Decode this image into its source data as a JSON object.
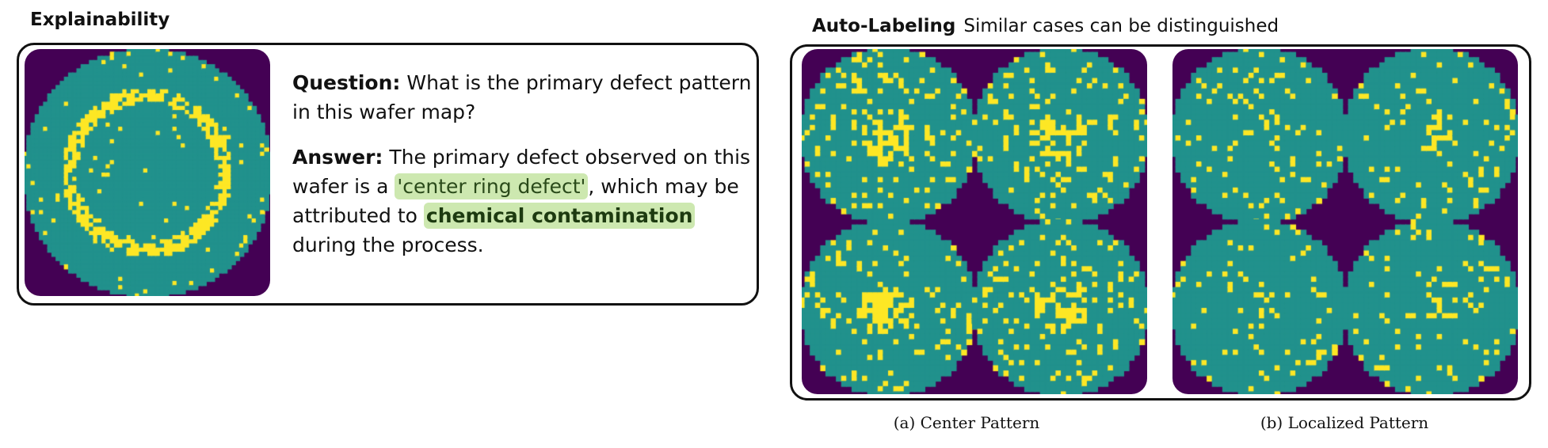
{
  "explainability": {
    "title": "Explainability",
    "question_label": "Question:",
    "question_text": "What is the primary defect pattern in this wafer map?",
    "answer_label": "Answer:",
    "answer_part1": "The primary defect observed on this wafer is a",
    "answer_highlight1": "'center ring defect'",
    "answer_part2": ", which may be attributed to",
    "answer_highlight2": "chemical contamination",
    "answer_part3": "during the process.",
    "wafer_pattern": "center-ring"
  },
  "auto_labeling": {
    "title": "Auto-Labeling",
    "subtitle": "Similar cases can be distinguished",
    "panels": [
      {
        "caption": "(a) Center Pattern",
        "pattern": "center"
      },
      {
        "caption": "(b) Localized Pattern",
        "pattern": "localized"
      }
    ]
  },
  "colors": {
    "background": "#440154",
    "wafer": "#21918c",
    "defect": "#fde725",
    "highlight": "#cde8b0"
  }
}
